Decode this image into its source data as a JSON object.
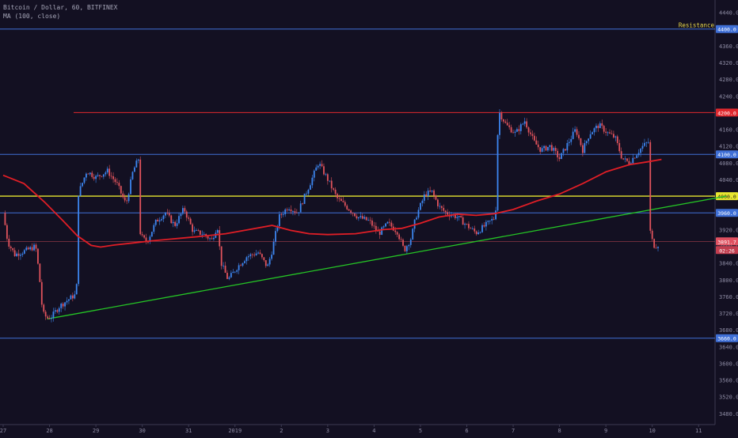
{
  "header": {
    "title": "Bitcoin / Dollar, 60, BITFINEX",
    "indicator": "MA (100, close)"
  },
  "chart_data": {
    "type": "candlestick",
    "symbol": "Bitcoin / Dollar",
    "interval": "60",
    "exchange": "BITFINEX",
    "indicator": "MA (100, close)",
    "x_ticks": [
      "27",
      "28",
      "29",
      "30",
      "31",
      "2019",
      "2",
      "3",
      "4",
      "5",
      "6",
      "7",
      "8",
      "9",
      "10",
      "11"
    ],
    "x_range_days": [
      0,
      15.6
    ],
    "y_range": [
      3440,
      4460
    ],
    "y_ticks": [
      3480,
      3520,
      3560,
      3600,
      3640,
      3680,
      3720,
      3760,
      3800,
      3840,
      3880,
      3920,
      3960,
      4000,
      4040,
      4080,
      4120,
      4160,
      4200,
      4240,
      4280,
      4320,
      4360,
      4400,
      4440
    ],
    "horizontal_lines": [
      {
        "price": 4400.0,
        "label": "4400.0",
        "color": "#3f6fd6",
        "annotation": "Resistance",
        "annotation_color": "#e8d84a"
      },
      {
        "price": 4200.0,
        "label": "4200.0",
        "color": "#e0282e"
      },
      {
        "price": 4100.0,
        "label": "4100.0",
        "color": "#3f6fd6"
      },
      {
        "price": 4000.0,
        "label": "4000.0",
        "color": "#e8e630"
      },
      {
        "price": 3960.0,
        "label": "3960.0",
        "color": "#3f6fd6"
      },
      {
        "price": 3660.0,
        "label": "3660.0",
        "color": "#3f6fd6"
      }
    ],
    "last_price": {
      "value": "3891.7",
      "countdown": "02:26",
      "color": "#e05060"
    },
    "trendline": {
      "from": [
        0.95,
        3706
      ],
      "to": [
        15.6,
        4000
      ],
      "color": "#25c525"
    },
    "ma": [
      [
        0.0,
        4050
      ],
      [
        0.45,
        4030
      ],
      [
        0.9,
        3985
      ],
      [
        1.3,
        3940
      ],
      [
        1.6,
        3905
      ],
      [
        1.9,
        3882
      ],
      [
        2.1,
        3878
      ],
      [
        2.4,
        3883
      ],
      [
        2.8,
        3888
      ],
      [
        3.2,
        3893
      ],
      [
        3.6,
        3897
      ],
      [
        4.2,
        3903
      ],
      [
        4.8,
        3910
      ],
      [
        5.3,
        3920
      ],
      [
        5.8,
        3930
      ],
      [
        6.2,
        3918
      ],
      [
        6.6,
        3910
      ],
      [
        7.0,
        3908
      ],
      [
        7.6,
        3910
      ],
      [
        8.2,
        3920
      ],
      [
        8.6,
        3923
      ],
      [
        9.0,
        3935
      ],
      [
        9.4,
        3950
      ],
      [
        9.8,
        3957
      ],
      [
        10.2,
        3954
      ],
      [
        10.6,
        3958
      ],
      [
        11.0,
        3968
      ],
      [
        11.5,
        3988
      ],
      [
        12.0,
        4005
      ],
      [
        12.5,
        4030
      ],
      [
        13.0,
        4058
      ],
      [
        13.5,
        4075
      ],
      [
        13.9,
        4082
      ],
      [
        14.2,
        4088
      ]
    ],
    "price_path": [
      [
        0.0,
        3960
      ],
      [
        0.1,
        3890
      ],
      [
        0.25,
        3860
      ],
      [
        0.5,
        3870
      ],
      [
        0.7,
        3880
      ],
      [
        0.78,
        3810
      ],
      [
        0.85,
        3720
      ],
      [
        0.95,
        3708
      ],
      [
        1.05,
        3712
      ],
      [
        1.2,
        3735
      ],
      [
        1.35,
        3748
      ],
      [
        1.5,
        3760
      ],
      [
        1.58,
        3765
      ],
      [
        1.62,
        4005
      ],
      [
        1.8,
        4060
      ],
      [
        2.0,
        4045
      ],
      [
        2.25,
        4060
      ],
      [
        2.45,
        4030
      ],
      [
        2.65,
        3980
      ],
      [
        2.8,
        4060
      ],
      [
        2.92,
        4090
      ],
      [
        2.96,
        3905
      ],
      [
        3.1,
        3890
      ],
      [
        3.3,
        3940
      ],
      [
        3.5,
        3960
      ],
      [
        3.7,
        3930
      ],
      [
        3.9,
        3970
      ],
      [
        4.1,
        3915
      ],
      [
        4.3,
        3910
      ],
      [
        4.5,
        3895
      ],
      [
        4.62,
        3930
      ],
      [
        4.7,
        3840
      ],
      [
        4.85,
        3800
      ],
      [
        5.05,
        3830
      ],
      [
        5.25,
        3855
      ],
      [
        5.5,
        3865
      ],
      [
        5.7,
        3830
      ],
      [
        5.8,
        3870
      ],
      [
        5.95,
        3950
      ],
      [
        6.15,
        3975
      ],
      [
        6.35,
        3960
      ],
      [
        6.6,
        4025
      ],
      [
        6.8,
        4080
      ],
      [
        7.0,
        4040
      ],
      [
        7.2,
        3995
      ],
      [
        7.45,
        3970
      ],
      [
        7.65,
        3950
      ],
      [
        7.9,
        3940
      ],
      [
        8.1,
        3910
      ],
      [
        8.3,
        3935
      ],
      [
        8.5,
        3915
      ],
      [
        8.65,
        3870
      ],
      [
        8.8,
        3900
      ],
      [
        8.9,
        3950
      ],
      [
        9.1,
        4005
      ],
      [
        9.25,
        4010
      ],
      [
        9.4,
        3975
      ],
      [
        9.55,
        3960
      ],
      [
        9.8,
        3950
      ],
      [
        10.0,
        3930
      ],
      [
        10.2,
        3912
      ],
      [
        10.4,
        3930
      ],
      [
        10.62,
        3950
      ],
      [
        10.68,
        4205
      ],
      [
        10.85,
        4170
      ],
      [
        11.05,
        4150
      ],
      [
        11.25,
        4180
      ],
      [
        11.45,
        4130
      ],
      [
        11.6,
        4110
      ],
      [
        11.8,
        4120
      ],
      [
        12.0,
        4090
      ],
      [
        12.2,
        4130
      ],
      [
        12.35,
        4160
      ],
      [
        12.5,
        4110
      ],
      [
        12.65,
        4150
      ],
      [
        12.85,
        4170
      ],
      [
        13.05,
        4150
      ],
      [
        13.2,
        4140
      ],
      [
        13.35,
        4090
      ],
      [
        13.5,
        4080
      ],
      [
        13.65,
        4100
      ],
      [
        13.8,
        4120
      ],
      [
        13.92,
        4130
      ],
      [
        13.96,
        3905
      ],
      [
        14.05,
        3880
      ],
      [
        14.15,
        3885
      ]
    ]
  }
}
